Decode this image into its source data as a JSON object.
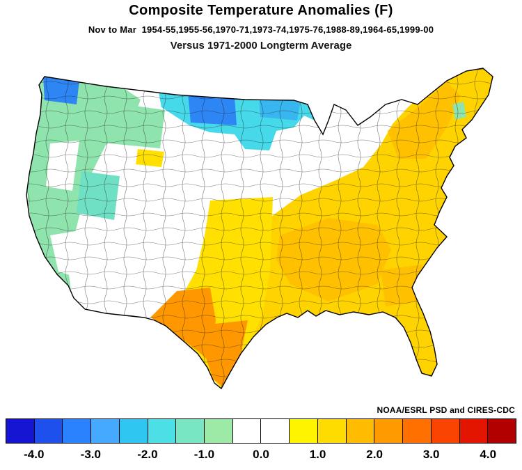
{
  "header": {
    "title": "Composite Temperature Anomalies (F)",
    "season_label": "Nov to Mar",
    "years": "1954-55,1955-56,1970-71,1973-74,1975-76,1988-89,1964-65,1999-00",
    "baseline": "Versus 1971-2000 Longterm Average"
  },
  "credit": "NOAA/ESRL PSD and CIRES-CDC",
  "colorbar": {
    "min": -4.5,
    "max": 4.5,
    "units": "F",
    "segment_colors": [
      "#1414d2",
      "#1e50ee",
      "#2b82ff",
      "#45aaff",
      "#2fc6f2",
      "#4ce0e6",
      "#78e6c3",
      "#9ceaa6",
      "#ffffff",
      "#ffffff",
      "#fff400",
      "#ffdc00",
      "#ffbc00",
      "#ff9a00",
      "#ff7000",
      "#f84400",
      "#e31500",
      "#b20000"
    ],
    "tick_labels": [
      "-4.0",
      "-3.0",
      "-2.0",
      "-1.0",
      "0.0",
      "1.0",
      "2.0",
      "3.0",
      "4.0"
    ],
    "tick_values": [
      -4,
      -3,
      -2,
      -1,
      0,
      1,
      2,
      3,
      4
    ]
  },
  "map": {
    "description": "Continental US climate divisions shaded by composite temperature anomaly",
    "outline_color": "#000000",
    "division_line_color": "#1a1a1a",
    "base_color": "#ffffff",
    "regions": [
      {
        "name": "pacific-coast-green",
        "anomaly": "-0.5 to -1.5",
        "color": "#8fe3ac"
      },
      {
        "name": "eastern-oregon-white",
        "anomaly": "near 0",
        "color": "#ffffff"
      },
      {
        "name": "socal-interior-white",
        "anomaly": "near 0",
        "color": "#ffffff"
      },
      {
        "name": "northern-rockies-green",
        "anomaly": "-0.5 to -1.5",
        "color": "#8fe3ac"
      },
      {
        "name": "utah-colorado-teal",
        "anomaly": "-1 to -2",
        "color": "#6fe0c4"
      },
      {
        "name": "northern-tier-cyan",
        "anomaly": "-1.5 to -2.5",
        "color": "#45d9ea"
      },
      {
        "name": "north-minnesota-blue",
        "anomaly": "-2 to -3",
        "color": "#38b6f0"
      },
      {
        "name": "north-washington-blue",
        "anomaly": "-2.5 to -3.5",
        "color": "#2e86f5"
      },
      {
        "name": "north-dakota-blue",
        "anomaly": "-2.5 to -3.5",
        "color": "#2e86f5"
      },
      {
        "name": "montana-yellow-spot",
        "anomaly": "+0.5 to +1",
        "color": "#ffe000"
      },
      {
        "name": "eastern-us-gold",
        "anomaly": "+1 to +2",
        "color": "#ffd300"
      },
      {
        "name": "southern-plains-yellow",
        "anomaly": "+0.5 to +1.5",
        "color": "#ffe000"
      },
      {
        "name": "mid-south-gold-core",
        "anomaly": "+1.5 to +2",
        "color": "#ffc000"
      },
      {
        "name": "northeast-gold-core",
        "anomaly": "+1.5 to +2",
        "color": "#ffc000"
      },
      {
        "name": "southeast-gold-core",
        "anomaly": "+1.5 to +2",
        "color": "#ffc000"
      },
      {
        "name": "west-texas-orange",
        "anomaly": "+2 to +2.5",
        "color": "#ff9800"
      },
      {
        "name": "south-texas-orange",
        "anomaly": "+2 to +2.5",
        "color": "#ff9800"
      },
      {
        "name": "new-england-green-spot",
        "anomaly": "-0.5 to -1",
        "color": "#8fe3ac"
      }
    ]
  }
}
